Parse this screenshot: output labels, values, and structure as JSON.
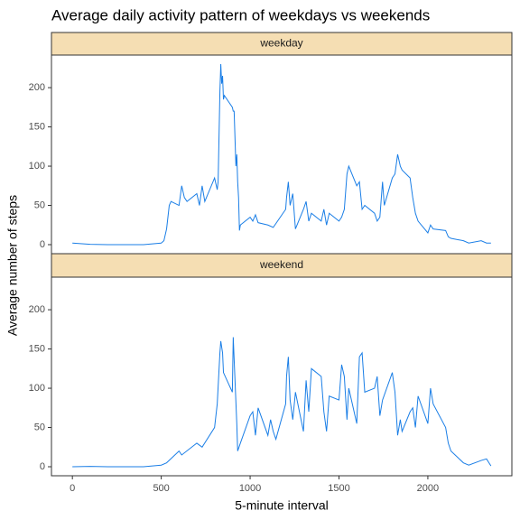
{
  "title": "Average daily activity pattern of weekdays vs weekends",
  "x_label": "5-minute interval",
  "y_label": "Average number of steps",
  "chart_data": [
    {
      "type": "line",
      "strip": "weekday",
      "color": "#1a7ee6",
      "x": [
        0,
        100,
        200,
        300,
        400,
        500,
        515,
        530,
        545,
        555,
        600,
        615,
        630,
        645,
        700,
        715,
        730,
        745,
        800,
        815,
        820,
        830,
        835,
        840,
        845,
        850,
        855,
        900,
        905,
        910,
        920,
        925,
        930,
        935,
        940,
        945,
        1000,
        1015,
        1030,
        1045,
        1100,
        1130,
        1200,
        1205,
        1215,
        1225,
        1240,
        1255,
        1300,
        1315,
        1330,
        1345,
        1400,
        1415,
        1430,
        1445,
        1500,
        1515,
        1530,
        1545,
        1555,
        1600,
        1615,
        1630,
        1645,
        1700,
        1715,
        1730,
        1745,
        1755,
        1800,
        1815,
        1830,
        1845,
        1855,
        1900,
        1915,
        1930,
        1945,
        2000,
        2015,
        2030,
        2100,
        2115,
        2130,
        2200,
        2230,
        2300,
        2330,
        2355
      ],
      "values": [
        2,
        0.5,
        0,
        0,
        0,
        2,
        5,
        20,
        50,
        55,
        50,
        75,
        60,
        55,
        65,
        50,
        75,
        55,
        85,
        70,
        80,
        195,
        230,
        205,
        215,
        185,
        190,
        175,
        170,
        170,
        100,
        115,
        80,
        60,
        18,
        25,
        35,
        30,
        38,
        28,
        25,
        22,
        45,
        60,
        80,
        50,
        65,
        20,
        45,
        55,
        30,
        40,
        30,
        45,
        25,
        40,
        30,
        35,
        45,
        90,
        100,
        75,
        80,
        45,
        50,
        40,
        30,
        35,
        80,
        50,
        85,
        90,
        115,
        100,
        95,
        85,
        60,
        40,
        30,
        15,
        25,
        20,
        18,
        10,
        8,
        5,
        2,
        5,
        2,
        2
      ],
      "xlim": [
        -117.75,
        2472.75
      ],
      "ylim": [
        -11.5,
        241.5
      ],
      "yticks": [
        0,
        50,
        100,
        150,
        200
      ]
    },
    {
      "type": "line",
      "strip": "weekend",
      "color": "#1a7ee6",
      "x": [
        0,
        100,
        200,
        300,
        400,
        500,
        530,
        600,
        615,
        700,
        730,
        800,
        815,
        830,
        835,
        845,
        850,
        900,
        905,
        915,
        925,
        930,
        945,
        1000,
        1015,
        1030,
        1045,
        1100,
        1115,
        1130,
        1145,
        1200,
        1205,
        1215,
        1225,
        1240,
        1255,
        1300,
        1315,
        1330,
        1345,
        1400,
        1415,
        1430,
        1445,
        1500,
        1515,
        1530,
        1545,
        1555,
        1600,
        1615,
        1630,
        1645,
        1700,
        1715,
        1730,
        1745,
        1800,
        1815,
        1830,
        1845,
        1855,
        1900,
        1915,
        1930,
        1945,
        2000,
        2015,
        2030,
        2100,
        2115,
        2130,
        2200,
        2230,
        2300,
        2330,
        2355
      ],
      "values": [
        0,
        0.5,
        0,
        0,
        0,
        2,
        5,
        20,
        15,
        30,
        25,
        50,
        80,
        145,
        160,
        145,
        120,
        95,
        165,
        110,
        55,
        20,
        30,
        65,
        70,
        40,
        75,
        40,
        60,
        45,
        35,
        80,
        115,
        140,
        85,
        60,
        95,
        45,
        110,
        70,
        125,
        115,
        70,
        45,
        90,
        85,
        130,
        115,
        60,
        100,
        55,
        140,
        145,
        95,
        100,
        115,
        65,
        85,
        120,
        95,
        40,
        60,
        45,
        70,
        75,
        50,
        90,
        55,
        100,
        80,
        50,
        30,
        20,
        5,
        2,
        8,
        10,
        1
      ],
      "xlim": [
        -117.75,
        2472.75
      ],
      "ylim": [
        -11.5,
        241.5
      ],
      "xticks": [
        0,
        500,
        1000,
        1500,
        2000
      ],
      "yticks": [
        0,
        50,
        100,
        150,
        200
      ]
    }
  ]
}
